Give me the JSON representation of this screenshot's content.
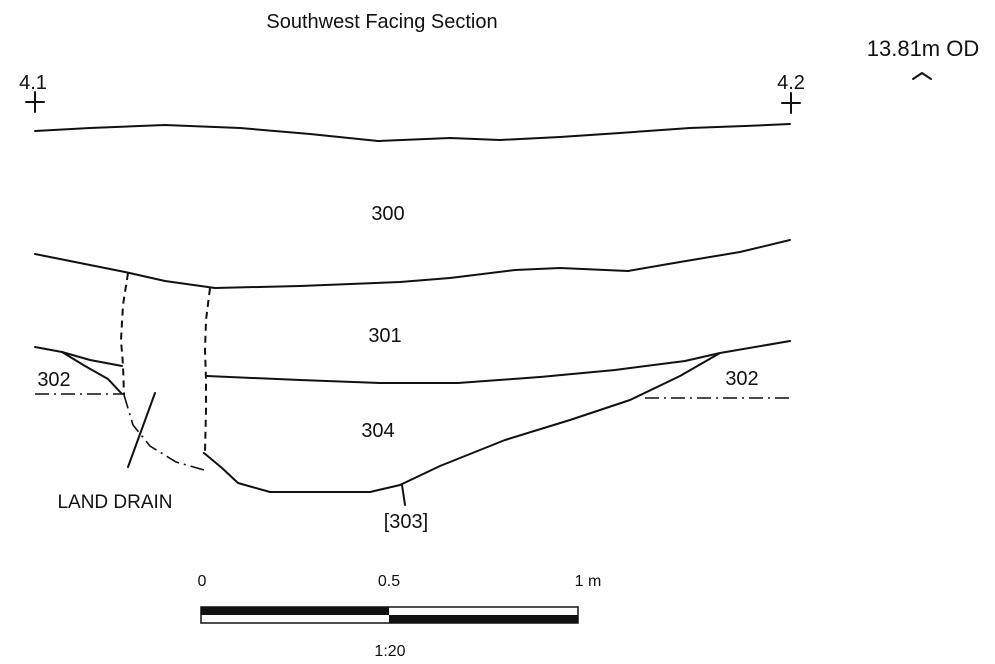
{
  "title": "Southwest Facing Section",
  "level": "13.81m OD",
  "points": {
    "left": "4.1",
    "right": "4.2"
  },
  "contexts": {
    "upper": "300",
    "middle": "301",
    "fill": "304",
    "natural_left": "302",
    "natural_right": "302",
    "cut": "[303]"
  },
  "annotation": "LAND DRAIN",
  "scale": {
    "tick_0": "0",
    "tick_half": "0.5",
    "tick_1": "1 m",
    "ratio": "1:20"
  }
}
